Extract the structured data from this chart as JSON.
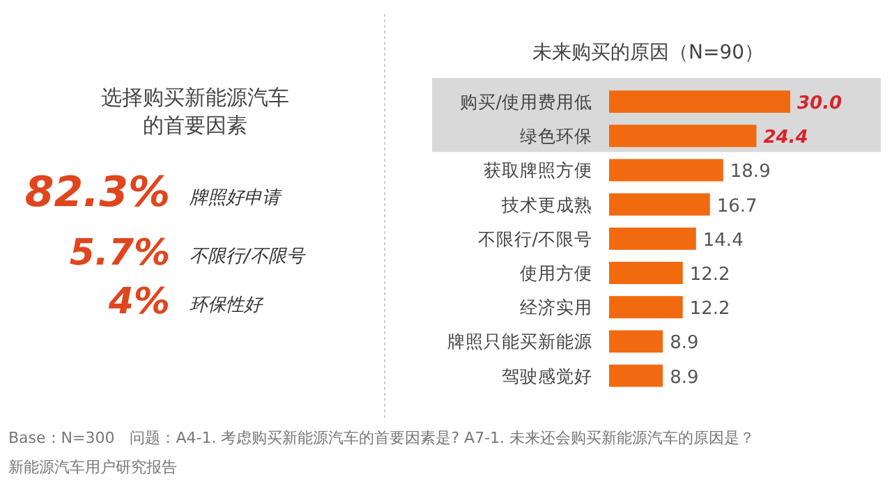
{
  "chart_data": [
    {
      "type": "other",
      "title": "选择购买新能源汽车的首要因素",
      "annotations": [
        "82.3%",
        "牌照好申请",
        "5.7%",
        "不限行/不限号",
        "4%",
        "环保性好"
      ]
    },
    {
      "type": "bar",
      "title": "未来购买的原因（N=90）",
      "orientation": "horizontal",
      "categories": [
        "购买/使用费用低",
        "绿色环保",
        "获取牌照方便",
        "技术更成熟",
        "不限行/不限号",
        "使用方便",
        "经济实用",
        "牌照只能买新能源",
        "驾驶感觉好"
      ],
      "values": [
        30.0,
        24.4,
        18.9,
        16.7,
        14.4,
        12.2,
        12.2,
        8.9,
        8.9
      ],
      "color": "#f26a10",
      "value_labels": [
        "30.0",
        "24.4",
        "18.9",
        "16.7",
        "14.4",
        "12.2",
        "12.2",
        "8.9",
        "8.9"
      ],
      "tick_labels": "y",
      "bands": [
        {
          "axis": "y",
          "from": "购买/使用费用低",
          "to": "绿色环保",
          "color": "#d9d9d9"
        }
      ],
      "annotations": [
        "Base：N=300　问题：A4-1. 考虑购买新能源汽车的首要因素是? A7-1. 未来还会购买新能源汽车的原因是？",
        "新能源汽车用户研究报告"
      ]
    }
  ]
}
